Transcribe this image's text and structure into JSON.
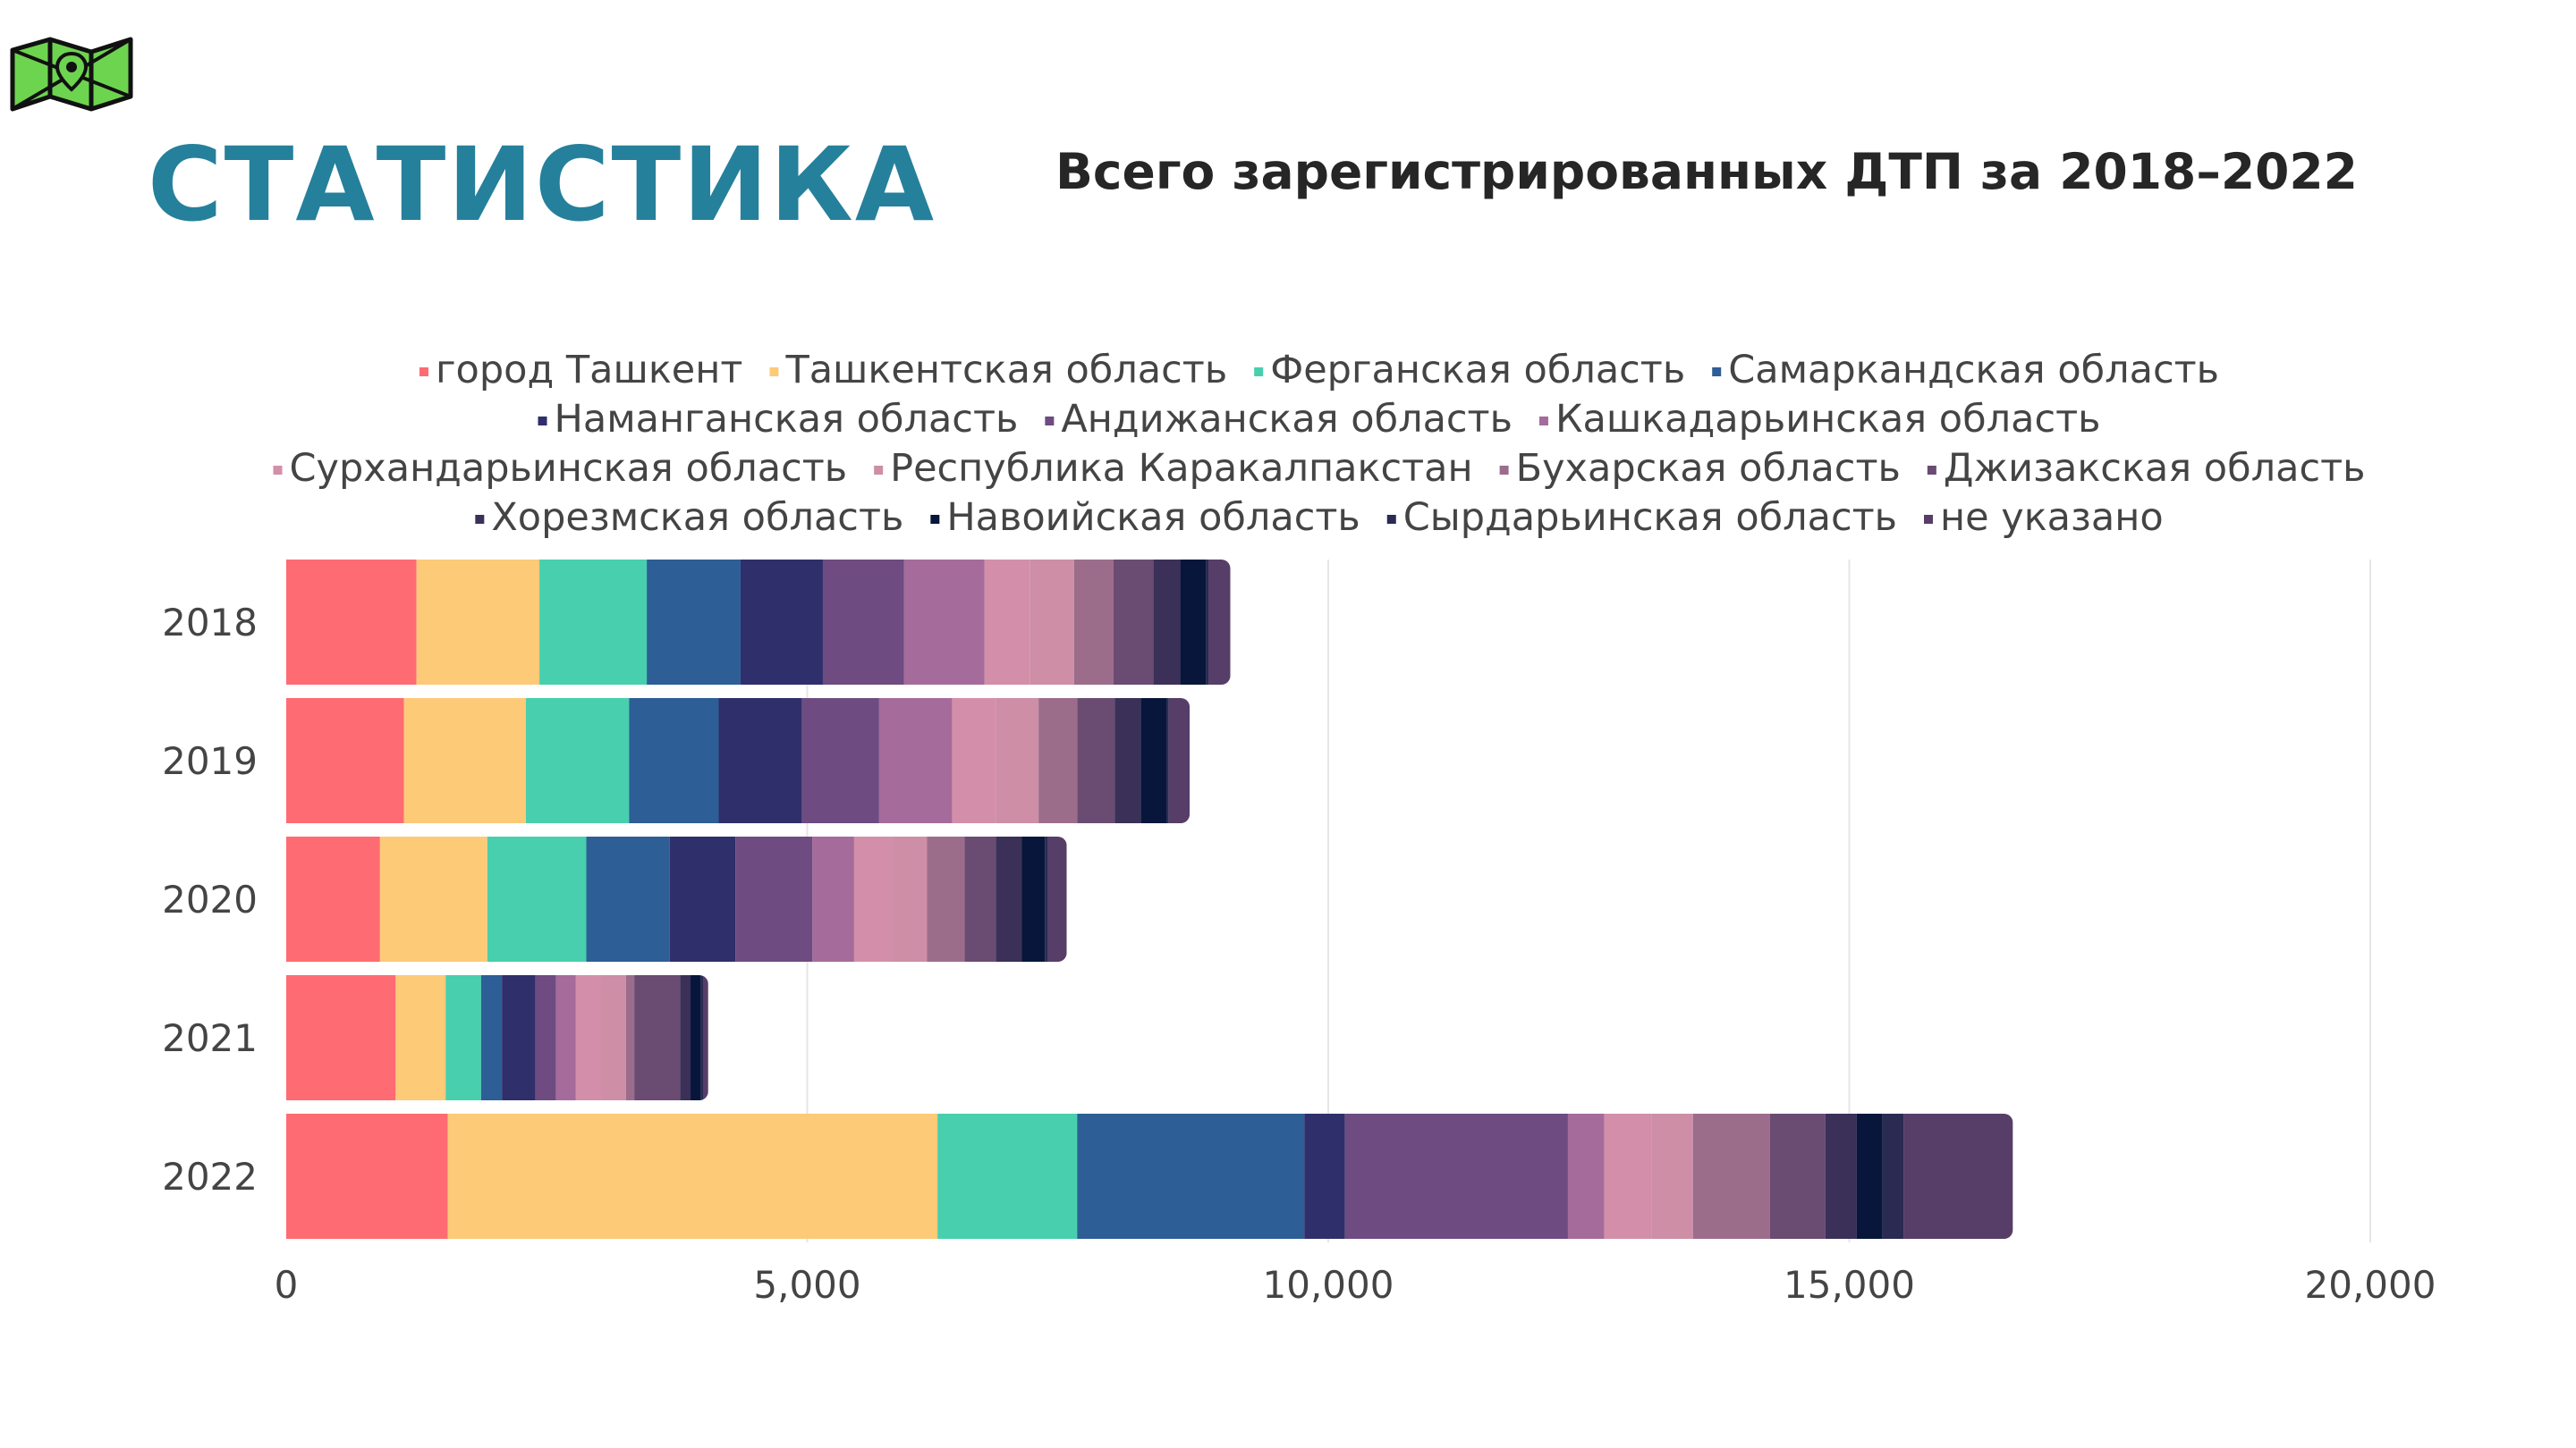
{
  "header": {
    "brand_title": "СТАТИСТИКА",
    "logo_icon": "map-pin-icon"
  },
  "colors": {
    "brand": "#25809b",
    "title": "#262626",
    "text": "#444444",
    "grid": "#e6e6e6"
  },
  "chart_data": {
    "type": "bar",
    "orientation": "horizontal",
    "stacked": true,
    "title": "Всего зарегистрированных ДТП за 2018–2022",
    "xlabel": "",
    "ylabel": "",
    "xlim": [
      0,
      20000
    ],
    "xticks": [
      0,
      5000,
      10000,
      15000,
      20000
    ],
    "xtick_labels": [
      "0",
      "5,000",
      "10,000",
      "15,000",
      "20,000"
    ],
    "grid": true,
    "legend_position": "top",
    "categories": [
      "2018",
      "2019",
      "2020",
      "2021",
      "2022"
    ],
    "series": [
      {
        "name": "город Ташкент",
        "color": "#ff6b72",
        "values": [
          1250,
          1130,
          900,
          1050,
          1550
        ]
      },
      {
        "name": "Ташкентская область",
        "color": "#fdca78",
        "values": [
          1180,
          1170,
          1030,
          480,
          4700
        ]
      },
      {
        "name": "Ферганская область",
        "color": "#48cfad",
        "values": [
          1030,
          990,
          950,
          340,
          1340
        ]
      },
      {
        "name": "Самаркандская область",
        "color": "#2d5e96",
        "values": [
          900,
          860,
          800,
          200,
          2180
        ]
      },
      {
        "name": "Наманганская область",
        "color": "#2f2f6b",
        "values": [
          790,
          800,
          630,
          320,
          390
        ]
      },
      {
        "name": "Андижанская область",
        "color": "#6e4b80",
        "values": [
          780,
          740,
          740,
          200,
          2140
        ]
      },
      {
        "name": "Кашкадарьинская область",
        "color": "#a56b9a",
        "values": [
          770,
          700,
          400,
          190,
          350
        ]
      },
      {
        "name": "Сурхандарьинская область",
        "color": "#d38fa9",
        "values": [
          440,
          420,
          370,
          250,
          450
        ]
      },
      {
        "name": "Республика Каракалпакстан",
        "color": "#cd8ea6",
        "values": [
          420,
          410,
          330,
          230,
          400
        ]
      },
      {
        "name": "Бухарская область",
        "color": "#9c6d8b",
        "values": [
          380,
          370,
          360,
          80,
          740
        ]
      },
      {
        "name": "Джизакская область",
        "color": "#6a4b72",
        "values": [
          380,
          360,
          300,
          440,
          530
        ]
      },
      {
        "name": "Хорезмская область",
        "color": "#3b3058",
        "values": [
          260,
          250,
          250,
          100,
          300
        ]
      },
      {
        "name": "Навоийская область",
        "color": "#07163a",
        "values": [
          250,
          250,
          220,
          100,
          250
        ]
      },
      {
        "name": "Сырдарьинская область",
        "color": "#2a2a52",
        "values": [
          20,
          20,
          30,
          20,
          200
        ]
      },
      {
        "name": "не указано",
        "color": "#563e68",
        "values": [
          210,
          200,
          180,
          50,
          1050
        ]
      }
    ]
  }
}
